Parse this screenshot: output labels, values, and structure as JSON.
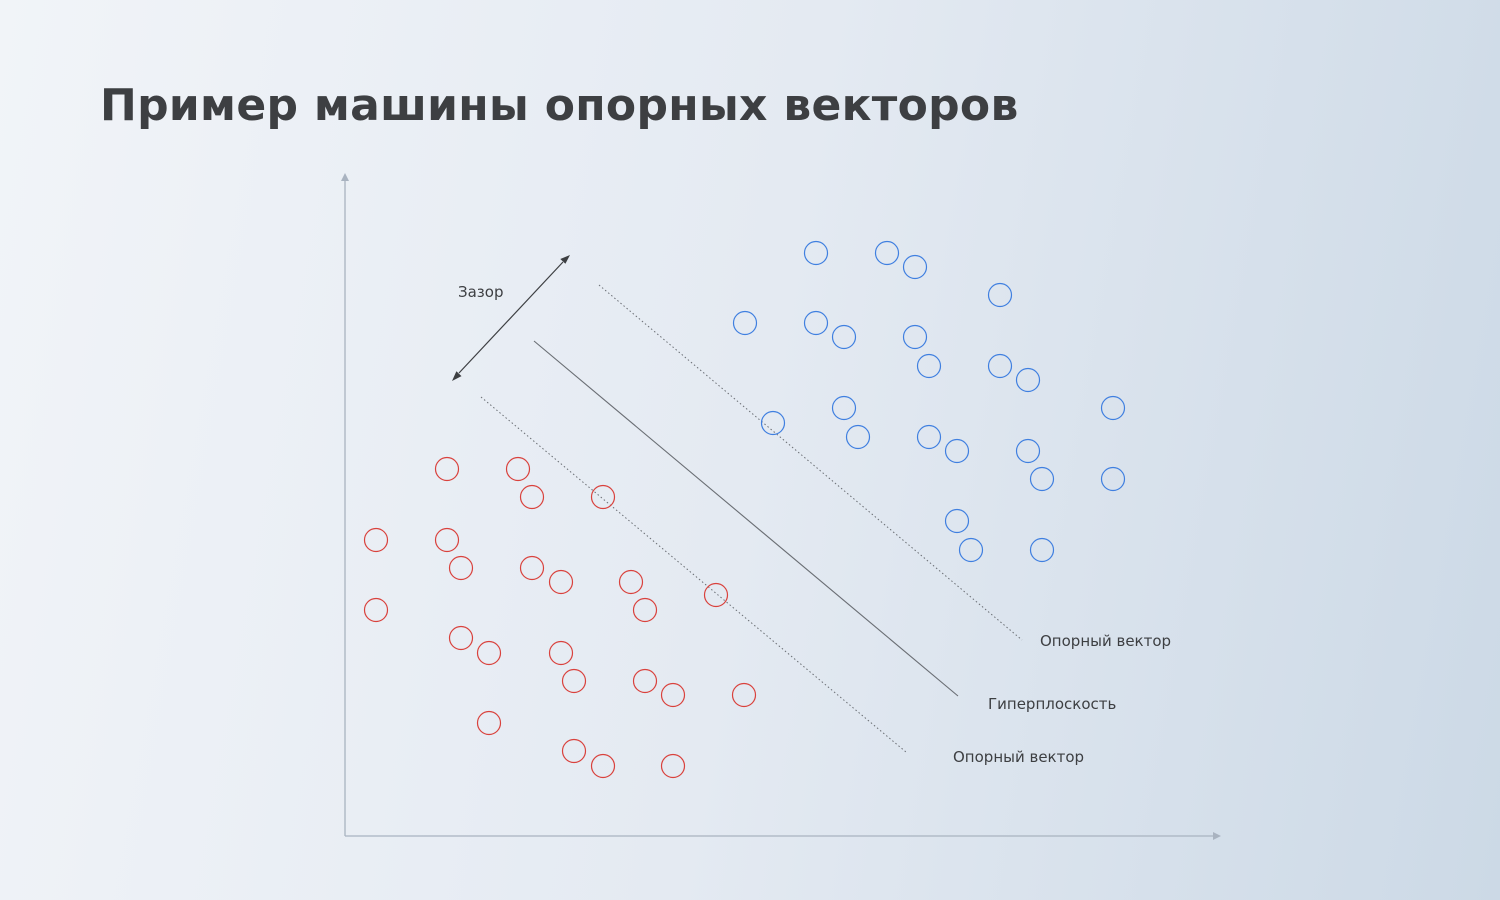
{
  "title": "Пример машины опорных векторов",
  "labels": {
    "margin": "Зазор",
    "support_vector_upper": "Опорный вектор",
    "hyperplane": "Гиперплоскость",
    "support_vector_lower": "Опорный вектор"
  },
  "colors": {
    "class_blue": "#3f7fe0",
    "class_red": "#d9413c",
    "axis": "#a9b3c0",
    "hyperplane": "#6a6e74",
    "support_line": "#6a6e74",
    "text": "#3d3f42"
  },
  "classes": {
    "blue": [
      [
        816,
        253
      ],
      [
        887,
        253
      ],
      [
        915,
        267
      ],
      [
        1000,
        295
      ],
      [
        745,
        323
      ],
      [
        816,
        323
      ],
      [
        844,
        337
      ],
      [
        915,
        337
      ],
      [
        929,
        366
      ],
      [
        1000,
        366
      ],
      [
        1028,
        380
      ],
      [
        1113,
        408
      ],
      [
        844,
        408
      ],
      [
        773,
        423
      ],
      [
        858,
        437
      ],
      [
        929,
        437
      ],
      [
        957,
        451
      ],
      [
        1028,
        451
      ],
      [
        1042,
        479
      ],
      [
        1113,
        479
      ],
      [
        957,
        521
      ],
      [
        971,
        550
      ],
      [
        1042,
        550
      ]
    ],
    "red": [
      [
        447,
        469
      ],
      [
        518,
        469
      ],
      [
        532,
        497
      ],
      [
        603,
        497
      ],
      [
        376,
        540
      ],
      [
        447,
        540
      ],
      [
        461,
        568
      ],
      [
        532,
        568
      ],
      [
        561,
        582
      ],
      [
        631,
        582
      ],
      [
        716,
        595
      ],
      [
        376,
        610
      ],
      [
        645,
        610
      ],
      [
        461,
        638
      ],
      [
        489,
        653
      ],
      [
        561,
        653
      ],
      [
        574,
        681
      ],
      [
        645,
        681
      ],
      [
        673,
        695
      ],
      [
        744,
        695
      ],
      [
        489,
        723
      ],
      [
        574,
        751
      ],
      [
        603,
        766
      ],
      [
        673,
        766
      ]
    ]
  }
}
